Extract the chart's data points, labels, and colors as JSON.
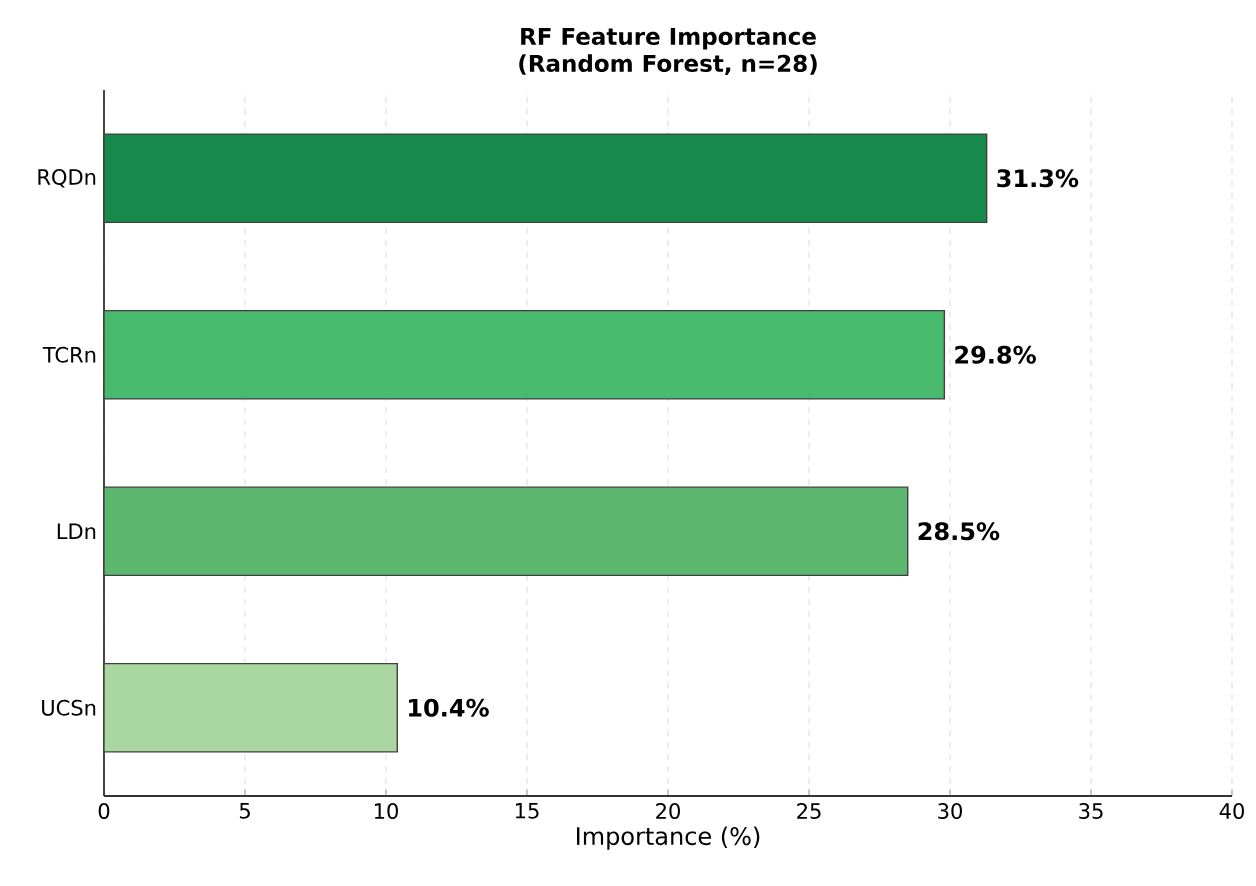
{
  "chart_data": {
    "type": "bar",
    "orientation": "horizontal",
    "title": "RF Feature Importance",
    "subtitle": "(Random Forest, n=28)",
    "xlabel": "Importance (%)",
    "categories": [
      "RQDn",
      "TCRn",
      "LDn",
      "UCSn"
    ],
    "values": [
      31.3,
      29.8,
      28.5,
      10.4
    ],
    "colors": [
      "#17894b",
      "#49b96d",
      "#5cb86e",
      "#a9d6a1"
    ],
    "value_labels": [
      "31.3%",
      "29.8%",
      "28.5%",
      "10.4%"
    ],
    "xlim": [
      0,
      40
    ],
    "xticks": [
      0,
      5,
      10,
      15,
      20,
      25,
      30,
      35,
      40
    ],
    "grid": "x"
  }
}
